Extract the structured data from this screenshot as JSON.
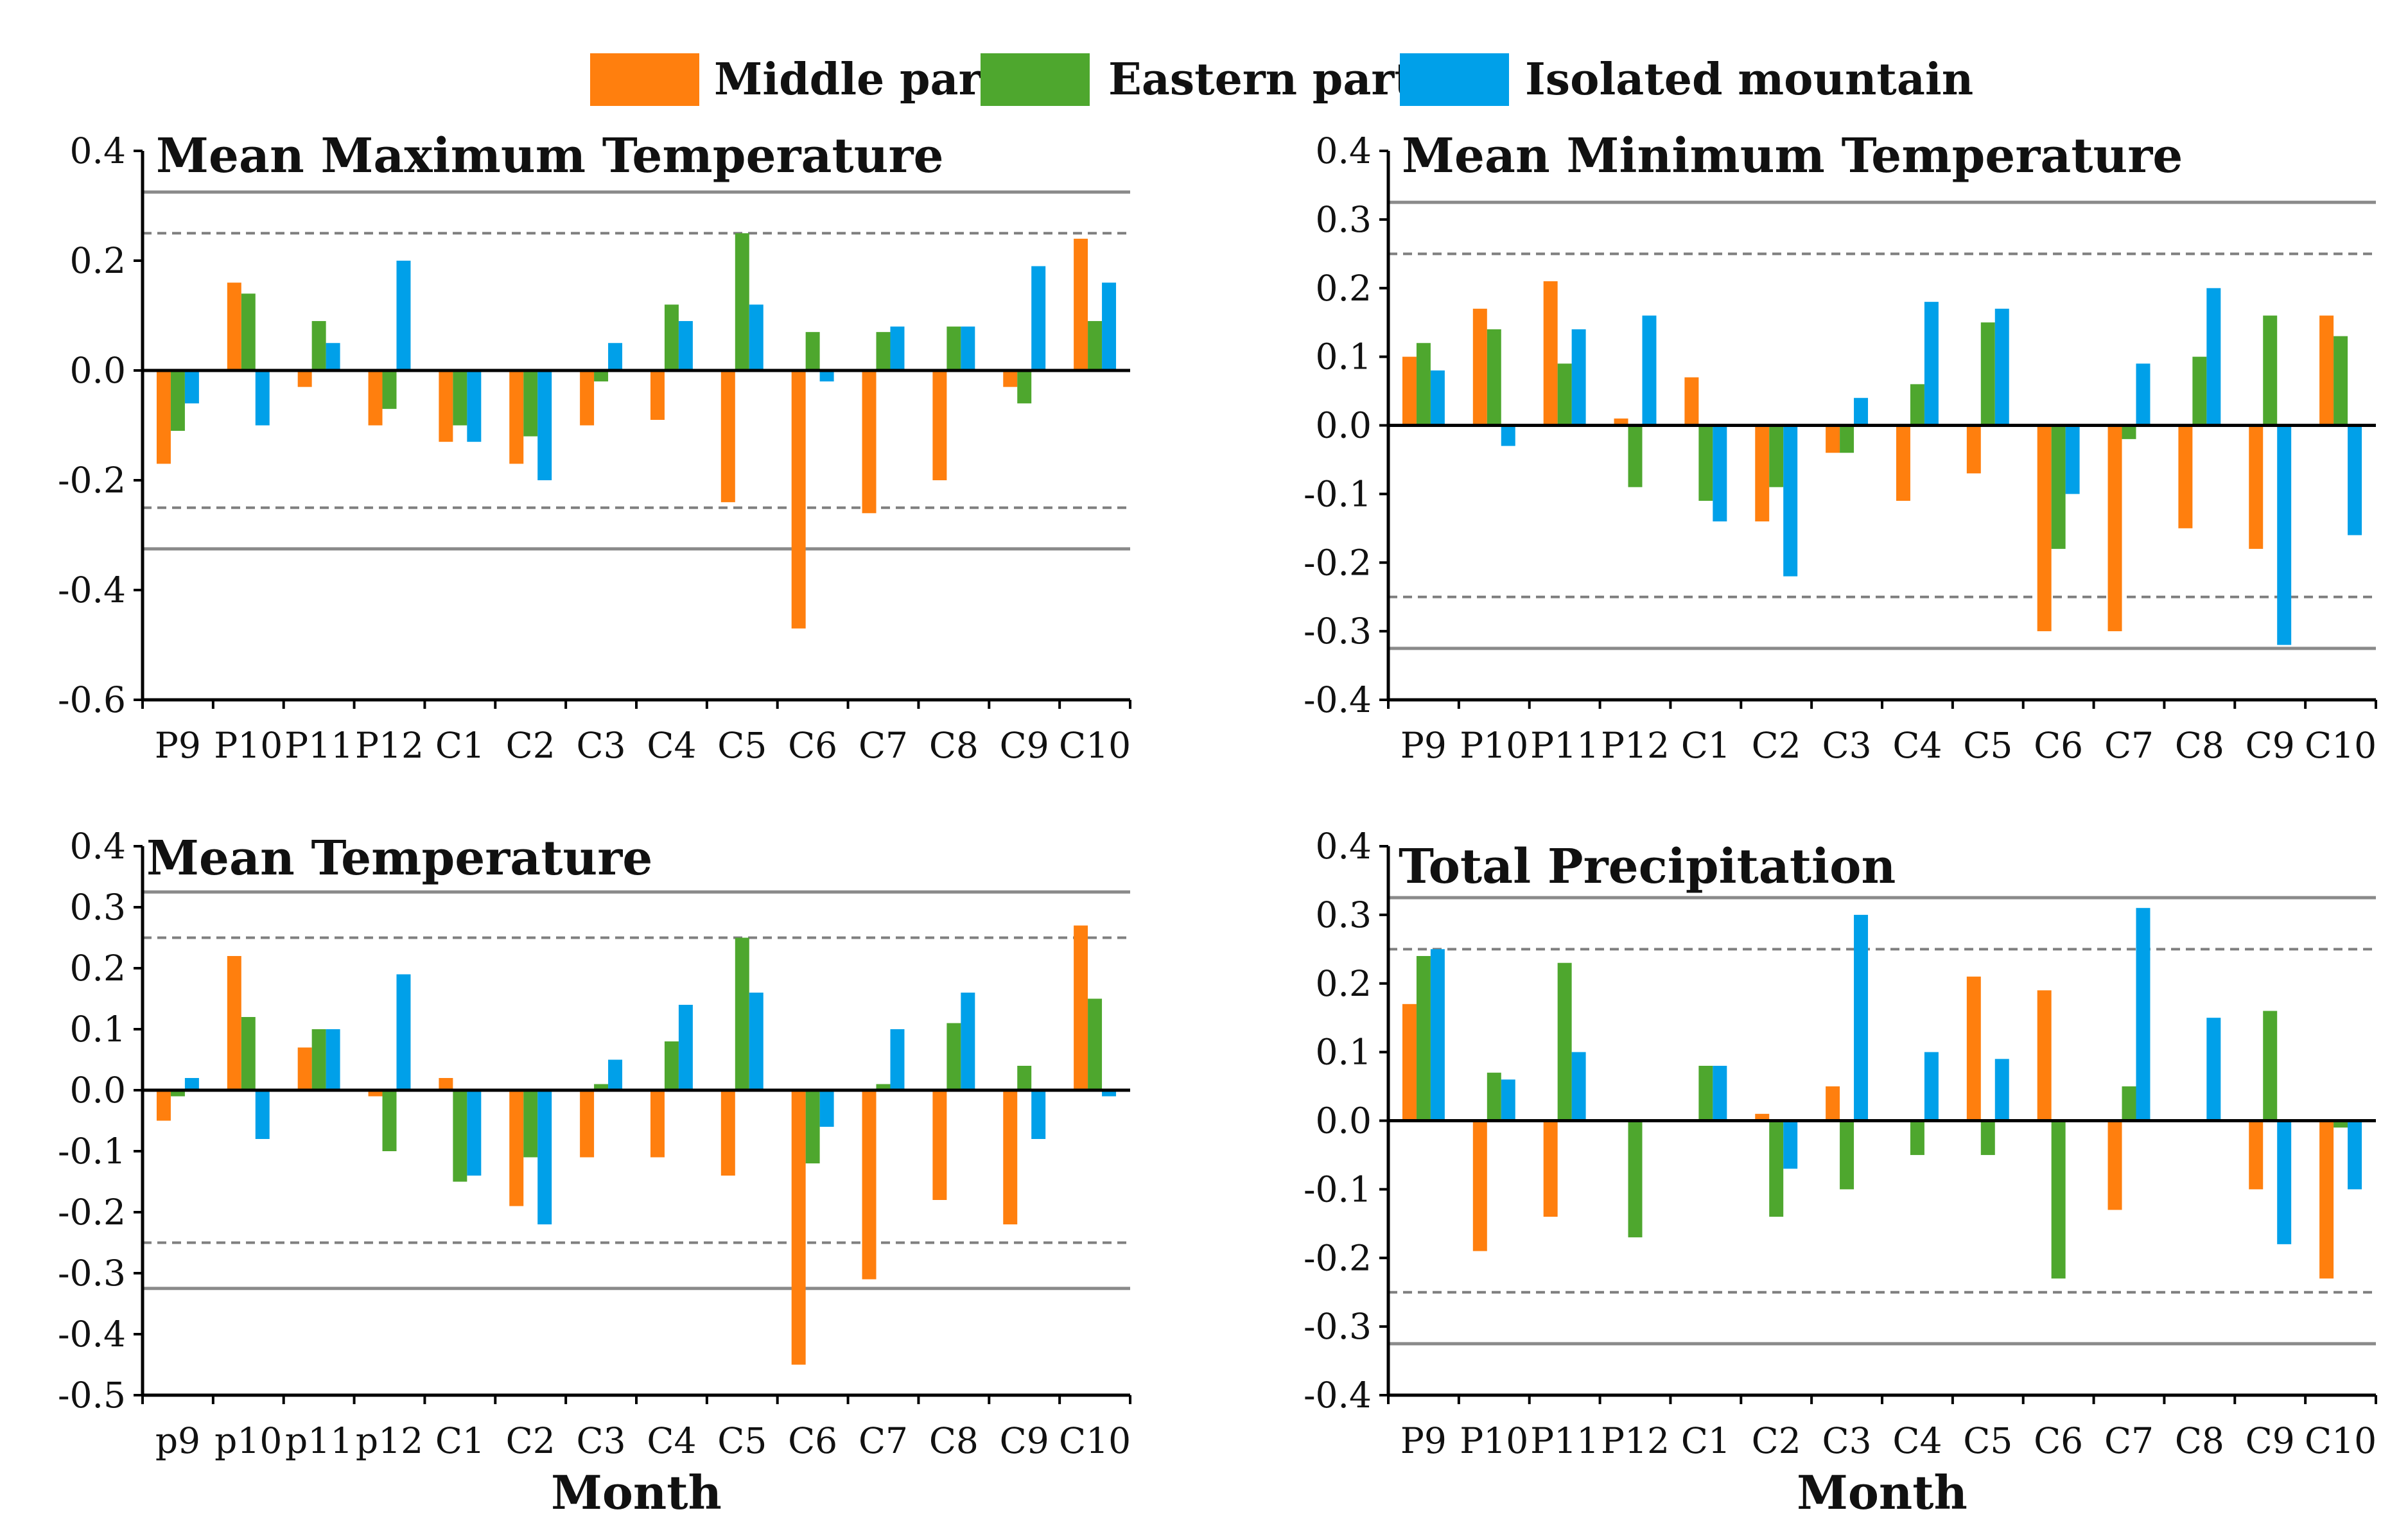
{
  "legend": {
    "items": [
      {
        "label": "Middle part",
        "color": "#ff7f0e"
      },
      {
        "label": "Eastern part",
        "color": "#4ea72e"
      },
      {
        "label": "Isolated mountain",
        "color": "#00a0e9"
      }
    ]
  },
  "chart_data": [
    {
      "type": "bar",
      "title": "Mean Maximum Temperature",
      "xlabel": "",
      "ylabel": "",
      "categories": [
        "P9",
        "P10",
        "P11",
        "P12",
        "C1",
        "C2",
        "C3",
        "C4",
        "C5",
        "C6",
        "C7",
        "C8",
        "C9",
        "C10"
      ],
      "ylim": [
        -0.6,
        0.4
      ],
      "yticks": [
        0.4,
        0.2,
        0.0,
        -0.2,
        -0.4,
        -0.6
      ],
      "ytick_labels": [
        "0.4",
        "0.2",
        "0.0",
        "-0.2",
        "-0.4",
        "-0.6"
      ],
      "reference_lines": {
        "solid": [
          0.325,
          -0.325
        ],
        "dashed": [
          0.25,
          -0.25
        ]
      },
      "series": [
        {
          "name": "Middle part",
          "values": [
            -0.17,
            0.16,
            -0.03,
            -0.1,
            -0.13,
            -0.17,
            -0.1,
            -0.09,
            -0.24,
            -0.47,
            -0.26,
            -0.2,
            -0.03,
            0.24
          ]
        },
        {
          "name": "Eastern part",
          "values": [
            -0.11,
            0.14,
            0.09,
            -0.07,
            -0.1,
            -0.12,
            -0.02,
            0.12,
            0.25,
            0.07,
            0.07,
            0.08,
            -0.06,
            0.09
          ]
        },
        {
          "name": "Isolated mountain",
          "values": [
            -0.06,
            -0.1,
            0.05,
            0.2,
            -0.13,
            -0.2,
            0.05,
            0.09,
            0.12,
            -0.02,
            0.08,
            0.08,
            0.19,
            0.16
          ]
        }
      ]
    },
    {
      "type": "bar",
      "title": "Mean Minimum Temperature",
      "xlabel": "",
      "ylabel": "",
      "categories": [
        "P9",
        "P10",
        "P11",
        "P12",
        "C1",
        "C2",
        "C3",
        "C4",
        "C5",
        "C6",
        "C7",
        "C8",
        "C9",
        "C10"
      ],
      "ylim": [
        -0.4,
        0.4
      ],
      "yticks": [
        0.4,
        0.3,
        0.2,
        0.1,
        0.0,
        -0.1,
        -0.2,
        -0.3,
        -0.4
      ],
      "ytick_labels": [
        "0.4",
        "0.3",
        "0.2",
        "0.1",
        "0.0",
        "-0.1",
        "-0.2",
        "-0.3",
        "-0.4"
      ],
      "reference_lines": {
        "solid": [
          0.325,
          -0.325
        ],
        "dashed": [
          0.25,
          -0.25
        ]
      },
      "series": [
        {
          "name": "Middle part",
          "values": [
            0.1,
            0.17,
            0.21,
            0.01,
            0.07,
            -0.14,
            -0.04,
            -0.11,
            -0.07,
            -0.3,
            -0.3,
            -0.15,
            -0.18,
            0.16
          ]
        },
        {
          "name": "Eastern part",
          "values": [
            0.12,
            0.14,
            0.09,
            -0.09,
            -0.11,
            -0.09,
            -0.04,
            0.06,
            0.15,
            -0.18,
            -0.02,
            0.1,
            0.16,
            0.13
          ]
        },
        {
          "name": "Isolated mountain",
          "values": [
            0.08,
            -0.03,
            0.14,
            0.16,
            -0.14,
            -0.22,
            0.04,
            0.18,
            0.17,
            -0.1,
            0.09,
            0.2,
            -0.32,
            -0.16
          ]
        }
      ]
    },
    {
      "type": "bar",
      "title": "Mean Temperature",
      "xlabel": "Month",
      "ylabel": "",
      "categories": [
        "p9",
        "p10",
        "p11",
        "p12",
        "C1",
        "C2",
        "C3",
        "C4",
        "C5",
        "C6",
        "C7",
        "C8",
        "C9",
        "C10"
      ],
      "ylim": [
        -0.5,
        0.4
      ],
      "yticks": [
        0.4,
        0.3,
        0.2,
        0.1,
        0.0,
        -0.1,
        -0.2,
        -0.3,
        -0.4,
        -0.5
      ],
      "ytick_labels": [
        "0.4",
        "0.3",
        "0.2",
        "0.1",
        "0.0",
        "-0.1",
        "-0.2",
        "-0.3",
        "-0.4",
        "-0.5"
      ],
      "reference_lines": {
        "solid": [
          0.325,
          -0.325
        ],
        "dashed": [
          0.25,
          -0.25
        ]
      },
      "series": [
        {
          "name": "Middle part",
          "values": [
            -0.05,
            0.22,
            0.07,
            -0.01,
            0.02,
            -0.19,
            -0.11,
            -0.11,
            -0.14,
            -0.45,
            -0.31,
            -0.18,
            -0.22,
            0.27
          ]
        },
        {
          "name": "Eastern part",
          "values": [
            -0.01,
            0.12,
            0.1,
            -0.1,
            -0.15,
            -0.11,
            0.01,
            0.08,
            0.25,
            -0.12,
            0.01,
            0.11,
            0.04,
            0.15
          ]
        },
        {
          "name": "Isolated mountain",
          "values": [
            0.02,
            -0.08,
            0.1,
            0.19,
            -0.14,
            -0.22,
            0.05,
            0.14,
            0.16,
            -0.06,
            0.1,
            0.16,
            -0.08,
            -0.01
          ]
        }
      ]
    },
    {
      "type": "bar",
      "title": "Total Precipitation",
      "xlabel": "Month",
      "ylabel": "",
      "categories": [
        "P9",
        "P10",
        "P11",
        "P12",
        "C1",
        "C2",
        "C3",
        "C4",
        "C5",
        "C6",
        "C7",
        "C8",
        "C9",
        "C10"
      ],
      "ylim": [
        -0.4,
        0.4
      ],
      "yticks": [
        0.4,
        0.3,
        0.2,
        0.1,
        0.0,
        -0.1,
        -0.2,
        -0.3,
        -0.4
      ],
      "ytick_labels": [
        "0.4",
        "0.3",
        "0.2",
        "0.1",
        "0.0",
        "-0.1",
        "-0.2",
        "-0.3",
        "-0.4"
      ],
      "reference_lines": {
        "solid": [
          0.325,
          -0.325
        ],
        "dashed": [
          0.25,
          -0.25
        ]
      },
      "series": [
        {
          "name": "Middle part",
          "values": [
            0.17,
            -0.19,
            -0.14,
            0.0,
            0.0,
            0.01,
            0.05,
            0.0,
            0.21,
            0.19,
            -0.13,
            0.0,
            -0.1,
            -0.23
          ]
        },
        {
          "name": "Eastern part",
          "values": [
            0.24,
            0.07,
            0.23,
            -0.17,
            0.08,
            -0.14,
            -0.1,
            -0.05,
            -0.05,
            -0.23,
            0.05,
            0.0,
            0.16,
            -0.01
          ]
        },
        {
          "name": "Isolated mountain",
          "values": [
            0.25,
            0.06,
            0.1,
            0.0,
            0.08,
            -0.07,
            0.3,
            0.1,
            0.09,
            0.0,
            0.31,
            0.15,
            -0.18,
            -0.1
          ]
        }
      ]
    }
  ]
}
